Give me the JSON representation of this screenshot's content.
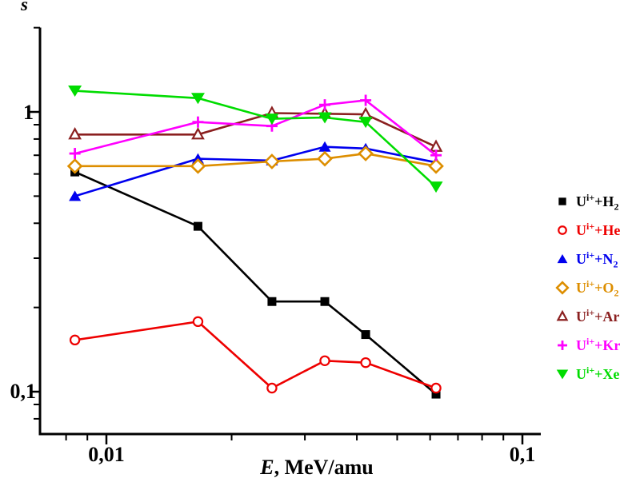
{
  "figure": {
    "background": "#ffffff",
    "axis_color": "#000000",
    "y_axis_symbol": "s",
    "x_axis_label": {
      "italic": "E",
      "rest": ", MeV/amu"
    }
  },
  "chart_data": {
    "type": "line",
    "title": "",
    "xlabel": "E, MeV/amu",
    "ylabel": "s",
    "x_scale": "log",
    "y_scale": "log",
    "grid": false,
    "legend_position": "right-outside",
    "xlim": [
      0.0069,
      0.112
    ],
    "ylim": [
      0.07,
      2.0
    ],
    "x_major_ticks": [
      {
        "value": 0.01,
        "label": "0,01"
      },
      {
        "value": 0.1,
        "label": "0,1"
      }
    ],
    "y_major_ticks": [
      {
        "value": 1,
        "label": "1"
      },
      {
        "value": 0.1,
        "label": "0,1"
      }
    ],
    "x_minor_ticks": [
      0.008,
      0.009,
      0.02,
      0.03,
      0.04,
      0.05,
      0.06,
      0.07,
      0.08,
      0.09
    ],
    "y_minor_ticks": [
      2.0,
      0.9,
      0.8,
      0.7,
      0.6,
      0.5,
      0.4,
      0.3,
      0.2,
      0.09,
      0.08
    ],
    "x": [
      0.0084,
      0.0166,
      0.025,
      0.0335,
      0.042,
      0.062
    ],
    "series": [
      {
        "id": "UH2",
        "marker": "square-filled",
        "color": "#000000",
        "label": {
          "pre": "U",
          "sup": "i+",
          "mid": "+H",
          "sub": "2"
        },
        "values": [
          0.61,
          0.39,
          0.21,
          0.21,
          0.16,
          0.098
        ]
      },
      {
        "id": "UHe",
        "marker": "circle-open",
        "color": "#EE0000",
        "label": {
          "pre": "U",
          "sup": "i+",
          "mid": "+He",
          "sub": ""
        },
        "values": [
          0.153,
          0.178,
          0.103,
          0.129,
          0.127,
          0.103
        ]
      },
      {
        "id": "UN2",
        "marker": "triangle-filled",
        "color": "#0000EE",
        "label": {
          "pre": "U",
          "sup": "i+",
          "mid": "+N",
          "sub": "2"
        },
        "values": [
          0.5,
          0.68,
          0.67,
          0.75,
          0.74,
          0.66
        ]
      },
      {
        "id": "UO2",
        "marker": "diamond-open",
        "color": "#DD8E00",
        "label": {
          "pre": "U",
          "sup": "i+",
          "mid": "+O",
          "sub": "2"
        },
        "values": [
          0.64,
          0.64,
          0.665,
          0.68,
          0.71,
          0.64
        ]
      },
      {
        "id": "UAr",
        "marker": "triangle-open",
        "color": "#8B2020",
        "label": {
          "pre": "U",
          "sup": "i+",
          "mid": "+Ar",
          "sub": ""
        },
        "values": [
          0.83,
          0.83,
          0.99,
          0.985,
          0.98,
          0.75
        ]
      },
      {
        "id": "UKr",
        "marker": "plus",
        "color": "#FF00FF",
        "label": {
          "pre": "U",
          "sup": "i+",
          "mid": "+Kr",
          "sub": ""
        },
        "values": [
          0.71,
          0.92,
          0.89,
          1.06,
          1.1,
          0.7
        ]
      },
      {
        "id": "UXe",
        "marker": "triangle-down-filled",
        "color": "#00DC00",
        "label": {
          "pre": "U",
          "sup": "i+",
          "mid": "+Xe",
          "sub": ""
        },
        "values": [
          1.19,
          1.12,
          0.945,
          0.955,
          0.92,
          0.54
        ]
      }
    ]
  }
}
